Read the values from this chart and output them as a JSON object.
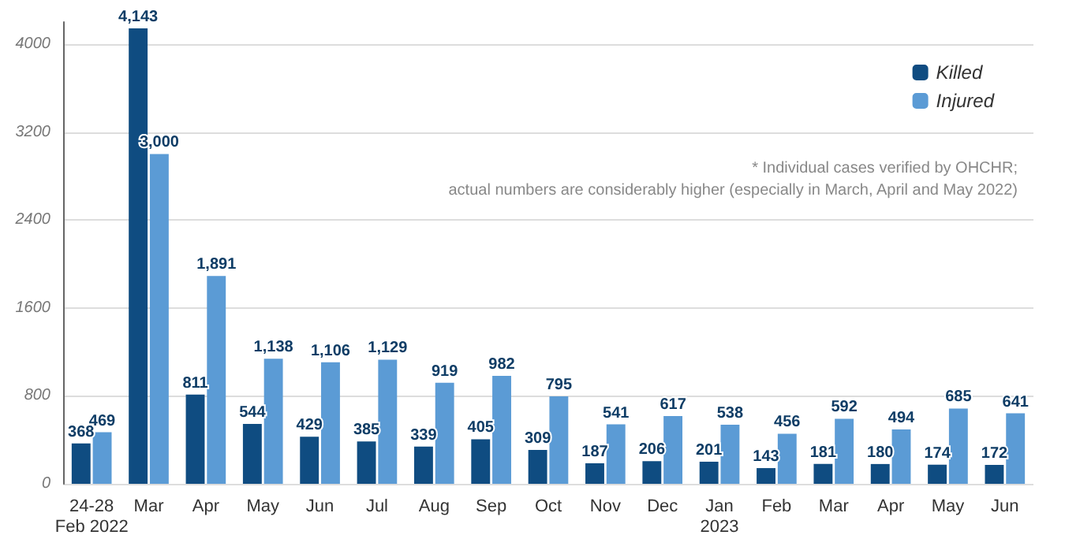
{
  "chart_data": {
    "type": "bar",
    "categories": [
      "24-28\nFeb 2022",
      "Mar",
      "Apr",
      "May",
      "Jun",
      "Jul",
      "Aug",
      "Sep",
      "Oct",
      "Nov",
      "Dec",
      "Jan\n2023",
      "Feb",
      "Mar",
      "Apr",
      "May",
      "Jun"
    ],
    "series": [
      {
        "name": "Killed",
        "color": "#0f4c81",
        "values": [
          368,
          4143,
          811,
          544,
          429,
          385,
          339,
          405,
          309,
          187,
          206,
          201,
          143,
          181,
          180,
          174,
          172
        ],
        "value_labels": [
          "368",
          "4,143",
          "811",
          "544",
          "429",
          "385",
          "339",
          "405",
          "309",
          "187",
          "206",
          "201",
          "143",
          "181",
          "180",
          "174",
          "172"
        ]
      },
      {
        "name": "Injured",
        "color": "#5b9bd5",
        "values": [
          469,
          3000,
          1891,
          1138,
          1106,
          1129,
          919,
          982,
          795,
          541,
          617,
          538,
          456,
          592,
          494,
          685,
          641
        ],
        "value_labels": [
          "469",
          "3,000",
          "1,891",
          "1,138",
          "1,106",
          "1,129",
          "919",
          "982",
          "795",
          "541",
          "617",
          "538",
          "456",
          "592",
          "494",
          "685",
          "641"
        ]
      }
    ],
    "ylim": [
      0,
      4200
    ],
    "yticks": [
      0,
      800,
      1600,
      2400,
      3200,
      4000
    ],
    "grid": "y",
    "legend": "top right",
    "annotations": [
      "* Individual cases verified by OHCHR;\nactual numbers are considerably higher (especially in March, April and May 2022)"
    ]
  }
}
